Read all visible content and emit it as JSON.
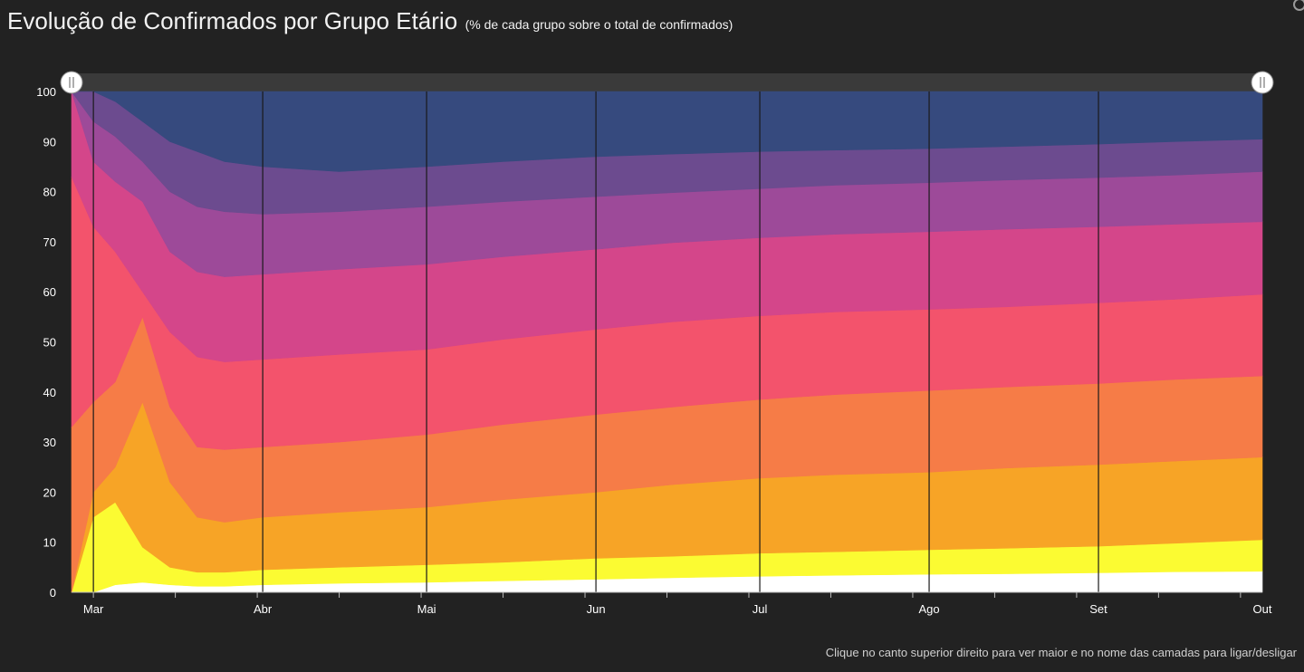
{
  "header": {
    "title": "Evolução de Confirmados por Grupo Etário",
    "subtitle": "(% de cada grupo sobre o total de confirmados)"
  },
  "footer": {
    "hint": "Clique no canto superior direito para ver maior e no nome das camadas para ligar/desligar"
  },
  "colors": {
    "background": "#222222",
    "plot_background": "#2c2c2c",
    "series": [
      "#ffffff",
      "#fbfb32",
      "#f7a426",
      "#f67c47",
      "#f3536c",
      "#d4468a",
      "#9d4a99",
      "#6c4b8f",
      "#364a7e"
    ]
  },
  "chart_data": {
    "type": "area",
    "stacked": true,
    "normalized_percent": true,
    "title": "Evolução de Confirmados por Grupo Etário",
    "subtitle": "(% de cada grupo sobre o total de confirmados)",
    "xlabel": "",
    "ylabel": "",
    "ylim": [
      0,
      100
    ],
    "yticks": [
      0,
      10,
      20,
      30,
      40,
      50,
      60,
      70,
      80,
      90,
      100
    ],
    "xticks": [
      "Mar",
      "Abr",
      "Mai",
      "Jun",
      "Jul",
      "Ago",
      "Set",
      "Out"
    ],
    "x": [
      "2020-02-26",
      "2020-03-01",
      "2020-03-05",
      "2020-03-10",
      "2020-03-15",
      "2020-03-20",
      "2020-03-25",
      "2020-04-01",
      "2020-04-15",
      "2020-05-01",
      "2020-05-15",
      "2020-06-01",
      "2020-06-15",
      "2020-07-01",
      "2020-07-15",
      "2020-08-01",
      "2020-08-15",
      "2020-09-01",
      "2020-09-15",
      "2020-10-01"
    ],
    "cumulative_upper_bounds": [
      [
        0,
        0,
        1.5,
        2.0,
        1.5,
        1.2,
        1.2,
        1.5,
        1.8,
        2.0,
        2.3,
        2.6,
        2.9,
        3.2,
        3.4,
        3.6,
        3.7,
        3.9,
        4.1,
        4.2
      ],
      [
        0,
        15,
        18,
        9,
        5,
        4,
        4,
        4.5,
        5,
        5.5,
        6,
        6.8,
        7.2,
        7.8,
        8.1,
        8.5,
        8.8,
        9.2,
        9.8,
        10.5
      ],
      [
        0,
        20,
        25,
        38,
        22,
        15,
        14,
        15,
        16,
        17,
        18.5,
        20,
        21.5,
        22.8,
        23.5,
        24,
        24.8,
        25.5,
        26.2,
        27
      ],
      [
        33,
        38,
        42,
        55,
        37,
        29,
        28.5,
        29,
        30,
        31.5,
        33.5,
        35.5,
        37,
        38.5,
        39.5,
        40.3,
        41,
        41.7,
        42.5,
        43.2
      ],
      [
        83,
        73,
        68,
        60,
        52,
        47,
        46,
        46.5,
        47.5,
        48.5,
        50.5,
        52.5,
        54,
        55.2,
        56,
        56.5,
        57,
        57.8,
        58.5,
        59.5
      ],
      [
        100,
        86,
        82,
        78,
        68,
        64,
        63,
        63.5,
        64.5,
        65.5,
        67,
        68.5,
        69.8,
        70.8,
        71.5,
        72,
        72.5,
        73,
        73.5,
        74
      ],
      [
        100,
        94,
        91,
        86,
        80,
        77,
        76,
        75.5,
        76,
        77,
        78,
        79,
        79.8,
        80.6,
        81.3,
        81.8,
        82.3,
        82.8,
        83.3,
        84
      ],
      [
        100,
        100,
        98,
        94,
        90,
        88,
        86,
        85,
        84,
        85,
        86,
        87,
        87.5,
        88,
        88.3,
        88.6,
        89,
        89.5,
        90,
        90.5
      ],
      [
        100,
        100,
        100,
        100,
        100,
        100,
        100,
        100,
        100,
        100,
        100,
        100,
        100,
        100,
        100,
        100,
        100,
        100,
        100,
        100
      ]
    ],
    "grid": false,
    "legend": "none",
    "range_slider": true
  }
}
